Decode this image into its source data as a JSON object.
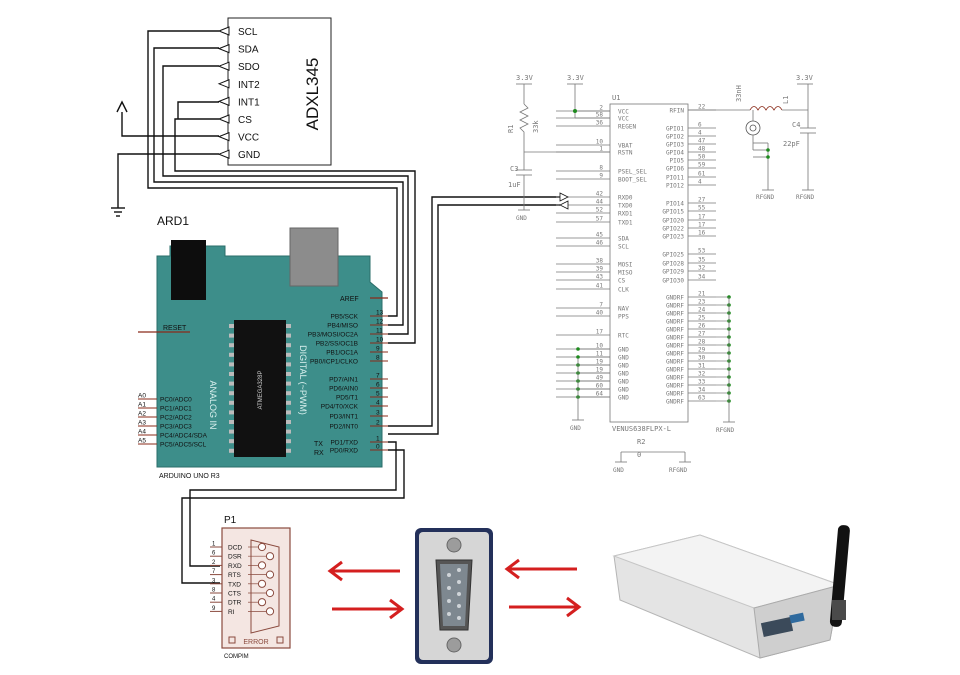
{
  "adxl": {
    "part": "ADXL345",
    "pins": [
      "SCL",
      "SDA",
      "SDO",
      "INT2",
      "INT1",
      "CS",
      "VCC",
      "GND"
    ]
  },
  "arduino": {
    "ref": "ARD1",
    "name": "ARDUINO UNO R3",
    "aref": "AREF",
    "reset": "RESET",
    "analog_title": "ANALOG IN",
    "digital_title": "DIGITAL (~PWM)",
    "atmel": "ATMEGA328P",
    "tx": "TX",
    "rx": "RX",
    "analog_pins": [
      {
        "num": "A0",
        "label": "PC0/ADC0"
      },
      {
        "num": "A1",
        "label": "PC1/ADC1"
      },
      {
        "num": "A2",
        "label": "PC2/ADC2"
      },
      {
        "num": "A3",
        "label": "PC3/ADC3"
      },
      {
        "num": "A4",
        "label": "PC4/ADC4/SDA"
      },
      {
        "num": "A5",
        "label": "PC5/ADC5/SCL"
      }
    ],
    "digital_pins": [
      {
        "num": "13",
        "label": "PB5/SCK"
      },
      {
        "num": "12",
        "label": "PB4/MISO"
      },
      {
        "num": "11",
        "label": "PB3/MOSI/OC2A"
      },
      {
        "num": "10",
        "label": "PB2/SS/OC1B"
      },
      {
        "num": "9",
        "label": "PB1/OC1A"
      },
      {
        "num": "8",
        "label": "PB0/ICP1/CLKO"
      },
      {
        "num": "7",
        "label": "PD7/AIN1"
      },
      {
        "num": "6",
        "label": "PD6/AIN0"
      },
      {
        "num": "5",
        "label": "PD5/T1"
      },
      {
        "num": "4",
        "label": "PD4/T0/XCK"
      },
      {
        "num": "3",
        "label": "PD3/INT1"
      },
      {
        "num": "2",
        "label": "PD2/INT0"
      },
      {
        "num": "1",
        "label": "PD1/TXD"
      },
      {
        "num": "0",
        "label": "PD0/RXD"
      }
    ]
  },
  "gps": {
    "ref": "U1",
    "part": "VENUS638FLPX-L",
    "left_pins": [
      {
        "name": "VCC",
        "num": "2"
      },
      {
        "name": "VCC",
        "num": "58"
      },
      {
        "name": "REGEN",
        "num": "36"
      },
      {
        "name": "VBAT",
        "num": "10"
      },
      {
        "name": "RSTN",
        "num": "1"
      },
      {
        "name": "PSEL_SEL",
        "num": "8"
      },
      {
        "name": "BOOT_SEL",
        "num": "9"
      },
      {
        "name": "RXD0",
        "num": "42"
      },
      {
        "name": "TXD0",
        "num": "44"
      },
      {
        "name": "RXD1",
        "num": "52"
      },
      {
        "name": "TXD1",
        "num": "57"
      },
      {
        "name": "SDA",
        "num": "45"
      },
      {
        "name": "SCL",
        "num": "46"
      },
      {
        "name": "MOSI",
        "num": "38"
      },
      {
        "name": "MISO",
        "num": "39"
      },
      {
        "name": "CS",
        "num": "43"
      },
      {
        "name": "CLK",
        "num": "41"
      },
      {
        "name": "NAV",
        "num": "7"
      },
      {
        "name": "PPS",
        "num": "40"
      },
      {
        "name": "RTC",
        "num": "17"
      },
      {
        "name": "GND",
        "num": "10"
      },
      {
        "name": "GND",
        "num": "11"
      },
      {
        "name": "GND",
        "num": "19"
      },
      {
        "name": "GND",
        "num": "19"
      },
      {
        "name": "GND",
        "num": "49"
      },
      {
        "name": "GND",
        "num": "60"
      },
      {
        "name": "GND",
        "num": "64"
      }
    ],
    "right_pins": [
      {
        "name": "RFIN",
        "num": "22"
      },
      {
        "name": "GPIO1",
        "num": "6"
      },
      {
        "name": "GPIO2",
        "num": "4"
      },
      {
        "name": "GPIO3",
        "num": "47"
      },
      {
        "name": "GPIO4",
        "num": "48"
      },
      {
        "name": "PIO5",
        "num": "50"
      },
      {
        "name": "GPIO6",
        "num": "59"
      },
      {
        "name": "PIO11",
        "num": "61"
      },
      {
        "name": "PIO12",
        "num": "4"
      },
      {
        "name": "PIO14",
        "num": "27"
      },
      {
        "name": "GPIO15",
        "num": "55"
      },
      {
        "name": "GPIO20",
        "num": "17"
      },
      {
        "name": "GPIO22",
        "num": "17"
      },
      {
        "name": "GPIO23",
        "num": "16"
      },
      {
        "name": "GPIO25",
        "num": "53"
      },
      {
        "name": "GPIO28",
        "num": "35"
      },
      {
        "name": "GPIO29",
        "num": "32"
      },
      {
        "name": "GPIO30",
        "num": "34"
      },
      {
        "name": "GNDRF",
        "num": "21"
      },
      {
        "name": "GNDRF",
        "num": "23"
      },
      {
        "name": "GNDRF",
        "num": "24"
      },
      {
        "name": "GNDRF",
        "num": "25"
      },
      {
        "name": "GNDRF",
        "num": "26"
      },
      {
        "name": "GNDRF",
        "num": "27"
      },
      {
        "name": "GNDRF",
        "num": "28"
      },
      {
        "name": "GNDRF",
        "num": "29"
      },
      {
        "name": "GNDRF",
        "num": "30"
      },
      {
        "name": "GNDRF",
        "num": "31"
      },
      {
        "name": "GNDRF",
        "num": "32"
      },
      {
        "name": "GNDRF",
        "num": "33"
      },
      {
        "name": "GNDRF",
        "num": "34"
      },
      {
        "name": "GNDRF",
        "num": "63"
      }
    ],
    "v33_a": "3.3V",
    "v33_b": "3.3V",
    "v33_c": "3.3V",
    "r1": "R1",
    "r1_val": "33k",
    "c3": "C3",
    "c3_val": "1uF",
    "gnd": "GND",
    "l1": "L1",
    "l1_val": "33nH",
    "c4": "C4",
    "c4_val": "22pF",
    "rfgnd": "RFGND",
    "r2": "R2",
    "r2_val": "0"
  },
  "connector": {
    "ref": "P1",
    "name": "COMPIM",
    "error": "ERROR",
    "pins": [
      {
        "num": "1",
        "name": "DCD"
      },
      {
        "num": "6",
        "name": "DSR"
      },
      {
        "num": "2",
        "name": "RXD"
      },
      {
        "num": "7",
        "name": "RTS"
      },
      {
        "num": "3",
        "name": "TXD"
      },
      {
        "num": "8",
        "name": "CTS"
      },
      {
        "num": "4",
        "name": "DTR"
      },
      {
        "num": "9",
        "name": "RI"
      }
    ]
  },
  "colors": {
    "board": "#3d8e8a",
    "arrow": "#d41f1f",
    "wire": "#111111",
    "green_dot": "#1e8a1e",
    "p1_box": "#f4e6e2",
    "p1_border": "#8a4a3e"
  }
}
